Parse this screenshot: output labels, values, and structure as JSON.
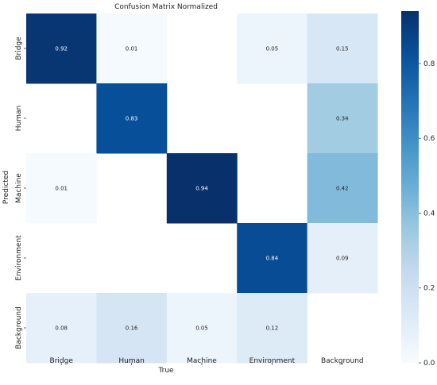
{
  "chart_data": {
    "type": "heatmap",
    "title": "Confusion Matrix Normalized",
    "xlabel": "True",
    "ylabel": "Predicted",
    "x_categories": [
      "Bridge",
      "Human",
      "Machine",
      "Environment",
      "Background"
    ],
    "y_categories": [
      "Bridge",
      "Human",
      "Machine",
      "Environment",
      "Background"
    ],
    "values": [
      [
        0.92,
        0.01,
        null,
        0.05,
        0.15
      ],
      [
        null,
        0.83,
        null,
        null,
        0.34
      ],
      [
        0.01,
        null,
        0.94,
        null,
        0.42
      ],
      [
        null,
        null,
        null,
        0.84,
        0.09
      ],
      [
        0.08,
        0.16,
        0.05,
        0.12,
        null
      ]
    ],
    "color_range": [
      0,
      0.94
    ],
    "colormap": "Blues",
    "colorbar_ticks": [
      "0.0",
      "0.2",
      "0.4",
      "0.6",
      "0.8"
    ],
    "colorbar_tick_values": [
      0.0,
      0.2,
      0.4,
      0.6,
      0.8
    ]
  }
}
